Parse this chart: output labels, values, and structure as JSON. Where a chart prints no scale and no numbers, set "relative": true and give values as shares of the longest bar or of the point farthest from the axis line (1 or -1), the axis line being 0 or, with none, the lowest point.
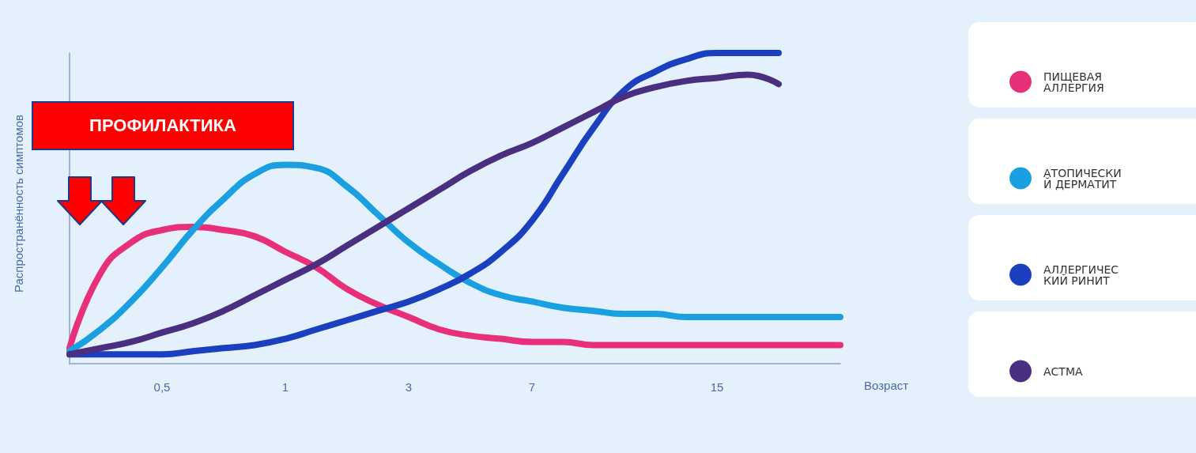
{
  "chart_data": {
    "type": "line",
    "relative": true,
    "xlabel": "Возраст",
    "ylabel": "Распространённость симптомов",
    "legend": "right",
    "marker": "none",
    "line_style": "solid",
    "grid": false,
    "categories": [
      null,
      null,
      null,
      "0,5",
      null,
      null,
      null,
      "1",
      null,
      null,
      null,
      "3",
      null,
      null,
      null,
      "7",
      null,
      null,
      null,
      null,
      null,
      "15",
      null,
      null,
      null,
      null
    ],
    "series": [
      {
        "name": "ПИЩЕВАЯ АЛЛЕРГИЯ",
        "color": "#e8307a",
        "values": [
          0.05,
          0.29,
          0.39,
          0.43,
          0.44,
          0.43,
          0.41,
          0.36,
          0.31,
          0.24,
          0.19,
          0.15,
          0.11,
          0.09,
          0.08,
          0.07,
          0.07,
          0.06,
          0.06,
          0.06,
          0.06,
          0.06,
          0.06,
          0.06,
          0.06,
          0.06
        ]
      },
      {
        "name": "АТОПИЧЕСКИЙ ДЕРМАТИТ",
        "color": "#1a9fe0",
        "values": [
          0.04,
          0.11,
          0.2,
          0.31,
          0.43,
          0.53,
          0.61,
          0.64,
          0.63,
          0.57,
          0.48,
          0.39,
          0.32,
          0.26,
          0.22,
          0.2,
          0.18,
          0.17,
          0.16,
          0.16,
          0.15,
          0.15,
          0.15,
          0.15,
          0.15,
          0.15
        ]
      },
      {
        "name": "АЛЛЕРГИЧЕСКИЙ РИНИТ",
        "color": "#1a3fbf",
        "values": [
          0.03,
          0.03,
          0.03,
          0.03,
          0.04,
          0.05,
          0.06,
          0.08,
          0.11,
          0.14,
          0.17,
          0.2,
          0.24,
          0.29,
          0.36,
          0.46,
          0.61,
          0.76,
          0.88,
          0.94,
          0.98,
          1,
          1,
          1,
          null,
          null
        ]
      },
      {
        "name": "АСТМА",
        "color": "#4a2f80",
        "values": [
          0.03,
          0.05,
          0.07,
          0.1,
          0.13,
          0.17,
          0.22,
          0.27,
          0.32,
          0.38,
          0.44,
          0.5,
          0.56,
          0.62,
          0.67,
          0.71,
          0.76,
          0.81,
          0.86,
          0.89,
          0.91,
          0.92,
          0.93,
          0.9,
          null,
          null
        ]
      }
    ],
    "annotations": [
      "ПРОФИЛАКТИКА"
    ]
  }
}
